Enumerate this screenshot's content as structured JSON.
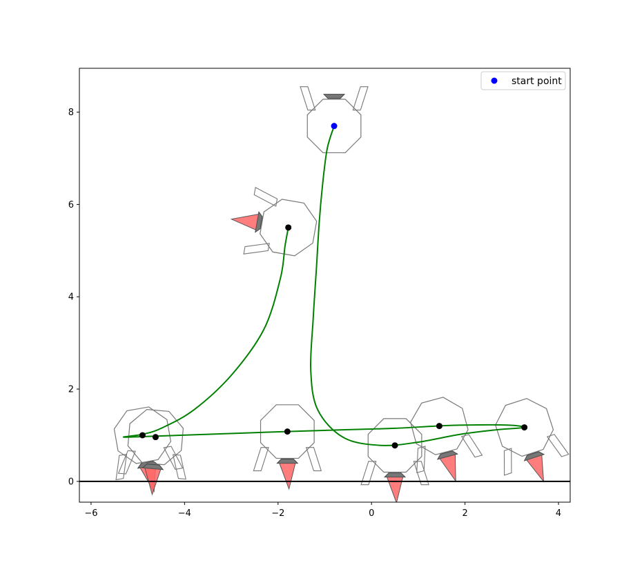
{
  "chart_data": {
    "type": "line",
    "title": "",
    "xlabel": "",
    "ylabel": "",
    "xlim": [
      -6.25,
      4.25
    ],
    "ylim": [
      -0.45,
      8.95
    ],
    "x_ticks": [
      -6,
      -4,
      -2,
      0,
      2,
      4
    ],
    "y_ticks": [
      0,
      2,
      4,
      6,
      8
    ],
    "grid": false,
    "legend": {
      "placement": "top-right",
      "entries": [
        {
          "label": "start point",
          "color": "#0000ff",
          "marker": "dot"
        }
      ]
    },
    "ground_line": {
      "y": 0,
      "color": "#000000"
    },
    "trajectory": {
      "color": "#008000",
      "points": [
        [
          -0.8,
          7.7
        ],
        [
          -0.95,
          7.2
        ],
        [
          -1.05,
          6.4
        ],
        [
          -1.12,
          5.6
        ],
        [
          -1.18,
          4.6
        ],
        [
          -1.25,
          3.5
        ],
        [
          -1.3,
          2.4
        ],
        [
          -1.15,
          1.55
        ],
        [
          -0.6,
          0.95
        ],
        [
          0.2,
          0.78
        ],
        [
          1.0,
          0.85
        ],
        [
          1.9,
          1.02
        ],
        [
          2.7,
          1.12
        ],
        [
          3.27,
          1.17
        ],
        [
          2.9,
          1.22
        ],
        [
          2.0,
          1.22
        ],
        [
          1.4,
          1.2
        ],
        [
          0.5,
          1.15
        ],
        [
          -0.5,
          1.12
        ],
        [
          -1.8,
          1.08
        ],
        [
          -3.5,
          1.02
        ],
        [
          -4.6,
          0.98
        ],
        [
          -5.3,
          0.96
        ],
        [
          -4.9,
          1.02
        ],
        [
          -4.5,
          1.15
        ],
        [
          -3.8,
          1.55
        ],
        [
          -3.0,
          2.3
        ],
        [
          -2.3,
          3.3
        ],
        [
          -1.95,
          4.4
        ],
        [
          -1.85,
          5.1
        ],
        [
          -1.78,
          5.5
        ]
      ]
    },
    "start_point": {
      "x": -0.8,
      "y": 7.7,
      "color": "#0000ff"
    },
    "body_centers": [
      {
        "x": -0.8,
        "y": 7.7,
        "angle": 180,
        "start": true
      },
      {
        "x": -1.78,
        "y": 5.5,
        "angle": 100
      },
      {
        "x": -4.9,
        "y": 1.0,
        "angle": -10
      },
      {
        "x": -4.62,
        "y": 0.96,
        "angle": 5
      },
      {
        "x": -1.8,
        "y": 1.08,
        "angle": 0
      },
      {
        "x": 0.5,
        "y": 0.78,
        "angle": 0
      },
      {
        "x": 1.45,
        "y": 1.2,
        "angle": -15
      },
      {
        "x": 3.27,
        "y": 1.17,
        "angle": -18
      }
    ],
    "colors": {
      "body_outline": "#777777",
      "thruster": "#ff6666",
      "cap": "#777777",
      "center_marker": "#000000"
    }
  }
}
